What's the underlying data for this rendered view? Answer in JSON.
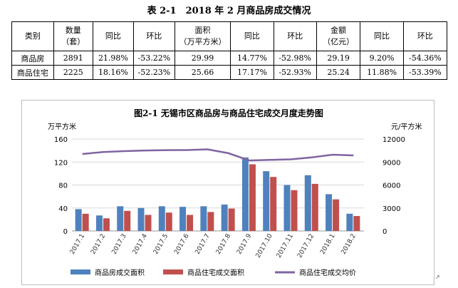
{
  "table": {
    "title": "表 2-1　2018 年 2 月商品房成交情况",
    "headers": [
      [
        "类别"
      ],
      [
        "数量",
        "（套）"
      ],
      [
        "同比"
      ],
      [
        "环比"
      ],
      [
        "面积",
        "（万平方米）"
      ],
      [
        "同比"
      ],
      [
        "环比"
      ],
      [
        "金额",
        "（亿元）"
      ],
      [
        "同比"
      ],
      [
        "环比"
      ]
    ],
    "rows": [
      [
        "商品房",
        "2891",
        "21.98%",
        "-53.22%",
        "29.99",
        "14.77%",
        "-52.98%",
        "29.19",
        "9.20%",
        "-54.36%"
      ],
      [
        "商品住宅",
        "2225",
        "18.16%",
        "-52.23%",
        "25.66",
        "17.17%",
        "-52.93%",
        "25.24",
        "11.88%",
        "-53.39%"
      ]
    ]
  },
  "chart_data": {
    "type": "bar",
    "title": "图2-1 无锡市区商品房与商品住宅成交月度走势图",
    "categories": [
      "2017.1",
      "2017.2",
      "2017.3",
      "2017.4",
      "2017.5",
      "2017.6",
      "2017.7",
      "2017.8",
      "2017.9",
      "2017.10",
      "2017.11",
      "2017.12",
      "2018.1",
      "2018.2"
    ],
    "series": [
      {
        "name": "商品房成交面积",
        "type": "bar",
        "axis": "left",
        "color": "#4f81bd",
        "values": [
          38,
          27,
          43,
          40,
          43,
          42,
          43,
          46,
          128,
          104,
          80,
          97,
          64,
          30
        ]
      },
      {
        "name": "商品住宅成交面积",
        "type": "bar",
        "axis": "left",
        "color": "#c0504d",
        "values": [
          30,
          22,
          35,
          28,
          32,
          28,
          33,
          39,
          116,
          94,
          71,
          82,
          55,
          26
        ]
      },
      {
        "name": "商品住宅成交均价",
        "type": "line",
        "axis": "right",
        "color": "#8064a2",
        "values": [
          10050,
          10300,
          10420,
          10500,
          10550,
          10560,
          10650,
          10150,
          9200,
          9280,
          9350,
          9600,
          9950,
          9860
        ]
      }
    ],
    "ylabel_left": "万平方米",
    "ylabel_right": "元/平方米",
    "ylim_left": [
      0,
      160
    ],
    "yticks_left": [
      0,
      40,
      80,
      120,
      160
    ],
    "ylim_right": [
      0,
      12000
    ],
    "yticks_right": [
      0,
      3000,
      6000,
      9000,
      12000
    ],
    "grid": "horizontal",
    "legend": "bottom"
  },
  "corner_mark": "↗"
}
